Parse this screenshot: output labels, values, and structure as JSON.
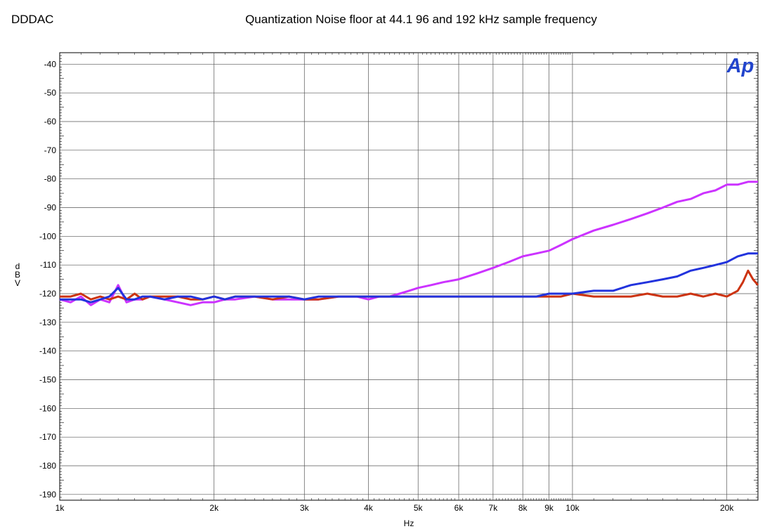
{
  "header": {
    "left_title": "DDDAC",
    "title": "Quantization Noise floor at 44.1  96 and 192 kHz sample frequency",
    "logo_text": "Ap"
  },
  "chart_data": {
    "type": "line",
    "title": "Quantization Noise floor at 44.1  96 and 192 kHz sample frequency",
    "xlabel": "Hz",
    "ylabel": "d B V",
    "xscale": "log",
    "xlim": [
      1000,
      23000
    ],
    "ylim": [
      -192,
      -36
    ],
    "grid": true,
    "xticks": [
      {
        "value": 1000,
        "label": "1k"
      },
      {
        "value": 2000,
        "label": "2k"
      },
      {
        "value": 3000,
        "label": "3k"
      },
      {
        "value": 4000,
        "label": "4k"
      },
      {
        "value": 5000,
        "label": "5k"
      },
      {
        "value": 6000,
        "label": "6k"
      },
      {
        "value": 7000,
        "label": "7k"
      },
      {
        "value": 8000,
        "label": "8k"
      },
      {
        "value": 9000,
        "label": "9k"
      },
      {
        "value": 10000,
        "label": "10k"
      },
      {
        "value": 20000,
        "label": "20k"
      }
    ],
    "yticks": [
      {
        "value": -40,
        "label": "-40"
      },
      {
        "value": -50,
        "label": "-50"
      },
      {
        "value": -60,
        "label": "-60"
      },
      {
        "value": -70,
        "label": "-70"
      },
      {
        "value": -80,
        "label": "-80"
      },
      {
        "value": -90,
        "label": "-90"
      },
      {
        "value": -100,
        "label": "-100"
      },
      {
        "value": -110,
        "label": "-110"
      },
      {
        "value": -120,
        "label": "-120"
      },
      {
        "value": -130,
        "label": "-130"
      },
      {
        "value": -140,
        "label": "-140"
      },
      {
        "value": -150,
        "label": "-150"
      },
      {
        "value": -160,
        "label": "-160"
      },
      {
        "value": -170,
        "label": "-170"
      },
      {
        "value": -180,
        "label": "-180"
      },
      {
        "value": -190,
        "label": "-190"
      }
    ],
    "series": [
      {
        "color": "#cc33ff",
        "points": [
          [
            1000,
            -122
          ],
          [
            1050,
            -123
          ],
          [
            1100,
            -121
          ],
          [
            1150,
            -124
          ],
          [
            1200,
            -122
          ],
          [
            1250,
            -123
          ],
          [
            1300,
            -117
          ],
          [
            1350,
            -123
          ],
          [
            1400,
            -122
          ],
          [
            1450,
            -122
          ],
          [
            1500,
            -121
          ],
          [
            1600,
            -122
          ],
          [
            1700,
            -123
          ],
          [
            1800,
            -124
          ],
          [
            1900,
            -123
          ],
          [
            2000,
            -123
          ],
          [
            2100,
            -122
          ],
          [
            2200,
            -122
          ],
          [
            2400,
            -121
          ],
          [
            2600,
            -122
          ],
          [
            2800,
            -122
          ],
          [
            3000,
            -122
          ],
          [
            3200,
            -122
          ],
          [
            3500,
            -121
          ],
          [
            3800,
            -121
          ],
          [
            4000,
            -122
          ],
          [
            4200,
            -121
          ],
          [
            4400,
            -121
          ],
          [
            4600,
            -120
          ],
          [
            4800,
            -119
          ],
          [
            5000,
            -118
          ],
          [
            5300,
            -117
          ],
          [
            5600,
            -116
          ],
          [
            6000,
            -115
          ],
          [
            6500,
            -113
          ],
          [
            7000,
            -111
          ],
          [
            7500,
            -109
          ],
          [
            8000,
            -107
          ],
          [
            8500,
            -106
          ],
          [
            9000,
            -105
          ],
          [
            9500,
            -103
          ],
          [
            10000,
            -101
          ],
          [
            11000,
            -98
          ],
          [
            12000,
            -96
          ],
          [
            13000,
            -94
          ],
          [
            14000,
            -92
          ],
          [
            15000,
            -90
          ],
          [
            16000,
            -88
          ],
          [
            17000,
            -87
          ],
          [
            18000,
            -85
          ],
          [
            19000,
            -84
          ],
          [
            20000,
            -82
          ],
          [
            21000,
            -82
          ],
          [
            22000,
            -81
          ],
          [
            23000,
            -81
          ]
        ]
      },
      {
        "color": "#cc3311",
        "points": [
          [
            1000,
            -121
          ],
          [
            1050,
            -121
          ],
          [
            1100,
            -120
          ],
          [
            1150,
            -122
          ],
          [
            1200,
            -121
          ],
          [
            1250,
            -122
          ],
          [
            1300,
            -121
          ],
          [
            1350,
            -122
          ],
          [
            1400,
            -120
          ],
          [
            1450,
            -122
          ],
          [
            1500,
            -121
          ],
          [
            1600,
            -121
          ],
          [
            1700,
            -121
          ],
          [
            1800,
            -122
          ],
          [
            1900,
            -122
          ],
          [
            2000,
            -121
          ],
          [
            2100,
            -122
          ],
          [
            2200,
            -121
          ],
          [
            2400,
            -121
          ],
          [
            2600,
            -122
          ],
          [
            2800,
            -121
          ],
          [
            3000,
            -122
          ],
          [
            3200,
            -122
          ],
          [
            3500,
            -121
          ],
          [
            3800,
            -121
          ],
          [
            4000,
            -121
          ],
          [
            4200,
            -121
          ],
          [
            4400,
            -121
          ],
          [
            4600,
            -121
          ],
          [
            4800,
            -121
          ],
          [
            5000,
            -121
          ],
          [
            5300,
            -121
          ],
          [
            5600,
            -121
          ],
          [
            6000,
            -121
          ],
          [
            6500,
            -121
          ],
          [
            7000,
            -121
          ],
          [
            7500,
            -121
          ],
          [
            8000,
            -121
          ],
          [
            8500,
            -121
          ],
          [
            9000,
            -121
          ],
          [
            9500,
            -121
          ],
          [
            10000,
            -120
          ],
          [
            11000,
            -121
          ],
          [
            12000,
            -121
          ],
          [
            13000,
            -121
          ],
          [
            14000,
            -120
          ],
          [
            15000,
            -121
          ],
          [
            16000,
            -121
          ],
          [
            17000,
            -120
          ],
          [
            18000,
            -121
          ],
          [
            19000,
            -120
          ],
          [
            20000,
            -121
          ],
          [
            21000,
            -119
          ],
          [
            21500,
            -116
          ],
          [
            22000,
            -112
          ],
          [
            22500,
            -115
          ],
          [
            23000,
            -117
          ]
        ]
      },
      {
        "color": "#2233dd",
        "points": [
          [
            1000,
            -122
          ],
          [
            1050,
            -122
          ],
          [
            1100,
            -122
          ],
          [
            1150,
            -123
          ],
          [
            1200,
            -122
          ],
          [
            1250,
            -121
          ],
          [
            1300,
            -118
          ],
          [
            1350,
            -122
          ],
          [
            1400,
            -122
          ],
          [
            1450,
            -121
          ],
          [
            1500,
            -121
          ],
          [
            1600,
            -122
          ],
          [
            1700,
            -121
          ],
          [
            1800,
            -121
          ],
          [
            1900,
            -122
          ],
          [
            2000,
            -121
          ],
          [
            2100,
            -122
          ],
          [
            2200,
            -121
          ],
          [
            2400,
            -121
          ],
          [
            2600,
            -121
          ],
          [
            2800,
            -121
          ],
          [
            3000,
            -122
          ],
          [
            3200,
            -121
          ],
          [
            3500,
            -121
          ],
          [
            3800,
            -121
          ],
          [
            4000,
            -121
          ],
          [
            4200,
            -121
          ],
          [
            4400,
            -121
          ],
          [
            4600,
            -121
          ],
          [
            4800,
            -121
          ],
          [
            5000,
            -121
          ],
          [
            5300,
            -121
          ],
          [
            5600,
            -121
          ],
          [
            6000,
            -121
          ],
          [
            6500,
            -121
          ],
          [
            7000,
            -121
          ],
          [
            7500,
            -121
          ],
          [
            8000,
            -121
          ],
          [
            8500,
            -121
          ],
          [
            9000,
            -120
          ],
          [
            9500,
            -120
          ],
          [
            10000,
            -120
          ],
          [
            11000,
            -119
          ],
          [
            12000,
            -119
          ],
          [
            13000,
            -117
          ],
          [
            14000,
            -116
          ],
          [
            15000,
            -115
          ],
          [
            16000,
            -114
          ],
          [
            17000,
            -112
          ],
          [
            18000,
            -111
          ],
          [
            19000,
            -110
          ],
          [
            20000,
            -109
          ],
          [
            21000,
            -107
          ],
          [
            22000,
            -106
          ],
          [
            23000,
            -106
          ]
        ]
      }
    ]
  }
}
